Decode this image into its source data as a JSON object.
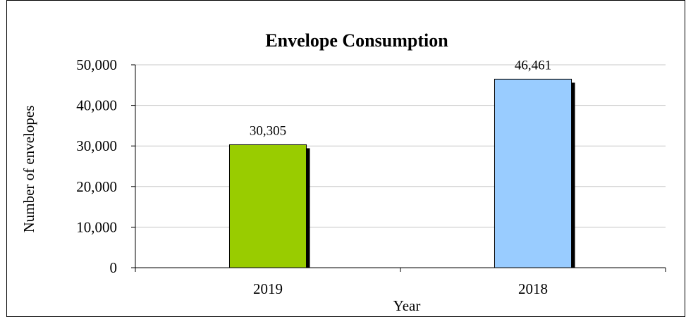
{
  "chart_data": {
    "type": "bar",
    "title": "Envelope Consumption",
    "xlabel": "Year",
    "ylabel": "Number of envelopes",
    "categories": [
      "2019",
      "2018"
    ],
    "values": [
      30305,
      46461
    ],
    "data_labels": [
      "30,305",
      "46,461"
    ],
    "bar_colors": [
      "#99cc00",
      "#99ccff"
    ],
    "shadow_color": "#000000",
    "ylim": [
      0,
      50000
    ],
    "y_ticks": [
      0,
      10000,
      20000,
      30000,
      40000,
      50000
    ],
    "y_tick_labels": [
      "0",
      "10,000",
      "20,000",
      "30,000",
      "40,000",
      "50,000"
    ],
    "grid": true,
    "legend": "none"
  }
}
